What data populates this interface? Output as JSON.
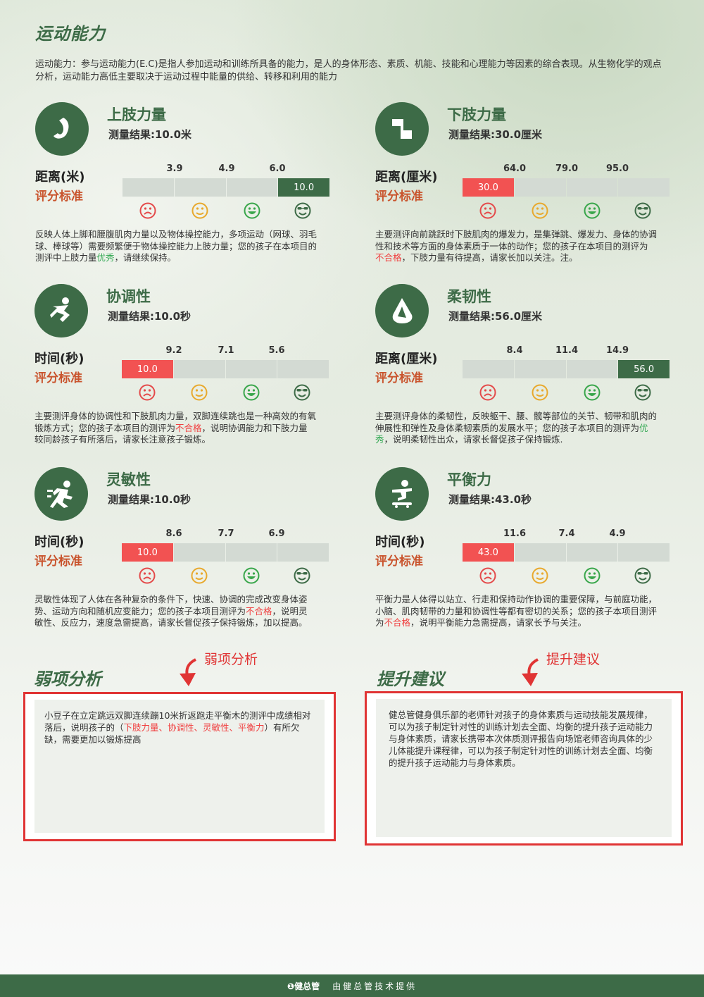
{
  "section_title": "运动能力",
  "intro": "运动能力：参与运动能力(E.C)是指人参加运动和训练所具备的能力，是人的身体形态、素质、机能、技能和心理能力等因素的综合表现。从生物化学的观点分析，运动能力高低主要取决于运动过程中能量的供给、转移和利用的能力",
  "rating_label": "评分标准",
  "colors": {
    "accent": "#3d6b47",
    "bad": "#f25252",
    "track": "#d3dad3"
  },
  "cards": [
    {
      "title": "上肢力量",
      "result": "测量结果:10.0米",
      "unit_label": "距离(米)",
      "ticks": [
        "3.9",
        "4.9",
        "6.0"
      ],
      "value": "10.0",
      "grade_index": 3,
      "desc_parts": [
        "反映人体上脚和腰腹肌肉力量以及物体操控能力，多项运动（网球、羽毛球、棒球等）需要频繁便于物体操控能力上肢力量；您的孩子在本项目的测评中上肢力量",
        "优秀",
        "，请继续保持。"
      ],
      "verdict_class": "green",
      "icon": "arm-strength-icon"
    },
    {
      "title": "下肢力量",
      "result": "测量结果:30.0厘米",
      "unit_label": "距离(厘米)",
      "ticks": [
        "64.0",
        "79.0",
        "95.0"
      ],
      "value": "30.0",
      "grade_index": 0,
      "desc_parts": [
        "主要测评向前跳跃时下肢肌肉的爆发力，是集弹跳、爆发力、身体的协调性和技术等方面的身体素质于一体的动作；您的孩子在本项目的测评为",
        "不合格",
        "，下肢力量有待提高，请家长加以关注。注。"
      ],
      "verdict_class": "red",
      "icon": "leg-strength-icon"
    },
    {
      "title": "协调性",
      "result": "测量结果:10.0秒",
      "unit_label": "时间(秒)",
      "ticks": [
        "9.2",
        "7.1",
        "5.6"
      ],
      "value": "10.0",
      "grade_index": 0,
      "desc_parts": [
        "主要测评身体的协调性和下肢肌肉力量，双脚连续跳也是一种高效的有氧锻炼方式；您的孩子本项目的测评为",
        "不合格",
        "，说明协调能力和下肢力量较同龄孩子有所落后，请家长注意孩子锻炼。"
      ],
      "verdict_class": "red",
      "icon": "coordination-icon"
    },
    {
      "title": "柔韧性",
      "result": "测量结果:56.0厘米",
      "unit_label": "距离(厘米)",
      "ticks": [
        "8.4",
        "11.4",
        "14.9"
      ],
      "value": "56.0",
      "grade_index": 3,
      "desc_parts": [
        "主要测评身体的柔韧性，反映躯干、腰、髋等部位的关节、韧带和肌肉的伸展性和弹性及身体柔韧素质的发展水平；您的孩子本项目的测评为",
        "优秀",
        "，说明柔韧性出众，请家长督促孩子保持锻炼."
      ],
      "verdict_class": "green",
      "icon": "flexibility-icon"
    },
    {
      "title": "灵敏性",
      "result": "测量结果:10.0秒",
      "unit_label": "时间(秒)",
      "ticks": [
        "8.6",
        "7.7",
        "6.9"
      ],
      "value": "10.0",
      "grade_index": 0,
      "desc_parts": [
        "灵敏性体现了人体在各种复杂的条件下，快速、协调的完成改变身体姿势、运动方向和随机应变能力；您的孩子本项目测评为",
        "不合格",
        "，说明灵敏性、反应力，速度急需提高，请家长督促孩子保持锻炼，加以提高。"
      ],
      "verdict_class": "red",
      "icon": "agility-icon"
    },
    {
      "title": "平衡力",
      "result": "测量结果:43.0秒",
      "unit_label": "时间(秒)",
      "ticks": [
        "11.6",
        "7.4",
        "4.9"
      ],
      "value": "43.0",
      "grade_index": 0,
      "desc_parts": [
        "平衡力是人体得以站立、行走和保持动作协调的重要保障，与前庭功能，小脑、肌肉韧带的力量和协调性等都有密切的关系；您的孩子本项目测评为",
        "不合格",
        "，说明平衡能力急需提高，请家长予与关注。"
      ],
      "verdict_class": "red",
      "icon": "balance-icon"
    }
  ],
  "weak": {
    "heading": "弱项分析",
    "callout": "弱项分析",
    "text_before": "小豆子在立定跳远双脚连续蹦10米折返跑走平衡木的测评中成绩相对落后，说明孩子的（",
    "highlight": "下肢力量、协调性、灵敏性、平衡力",
    "text_after": "）有所欠缺，需要更加以锻炼提高"
  },
  "advice": {
    "heading": "提升建议",
    "callout": "提升建议",
    "text": "健总管健身俱乐部的老师针对孩子的身体素质与运动技能发展规律，可以为孩子制定针对性的训练计划去全面、均衡的提升孩子运动能力与身体素质，请家长携带本次体质测评报告向场馆老师咨询具体的少儿体能提升课程律，可以为孩子制定针对性的训练计划去全面、均衡的提升孩子运动能力与身体素质。"
  },
  "footer": {
    "logo": "❶健总管",
    "text": "由健总管技术提供"
  }
}
